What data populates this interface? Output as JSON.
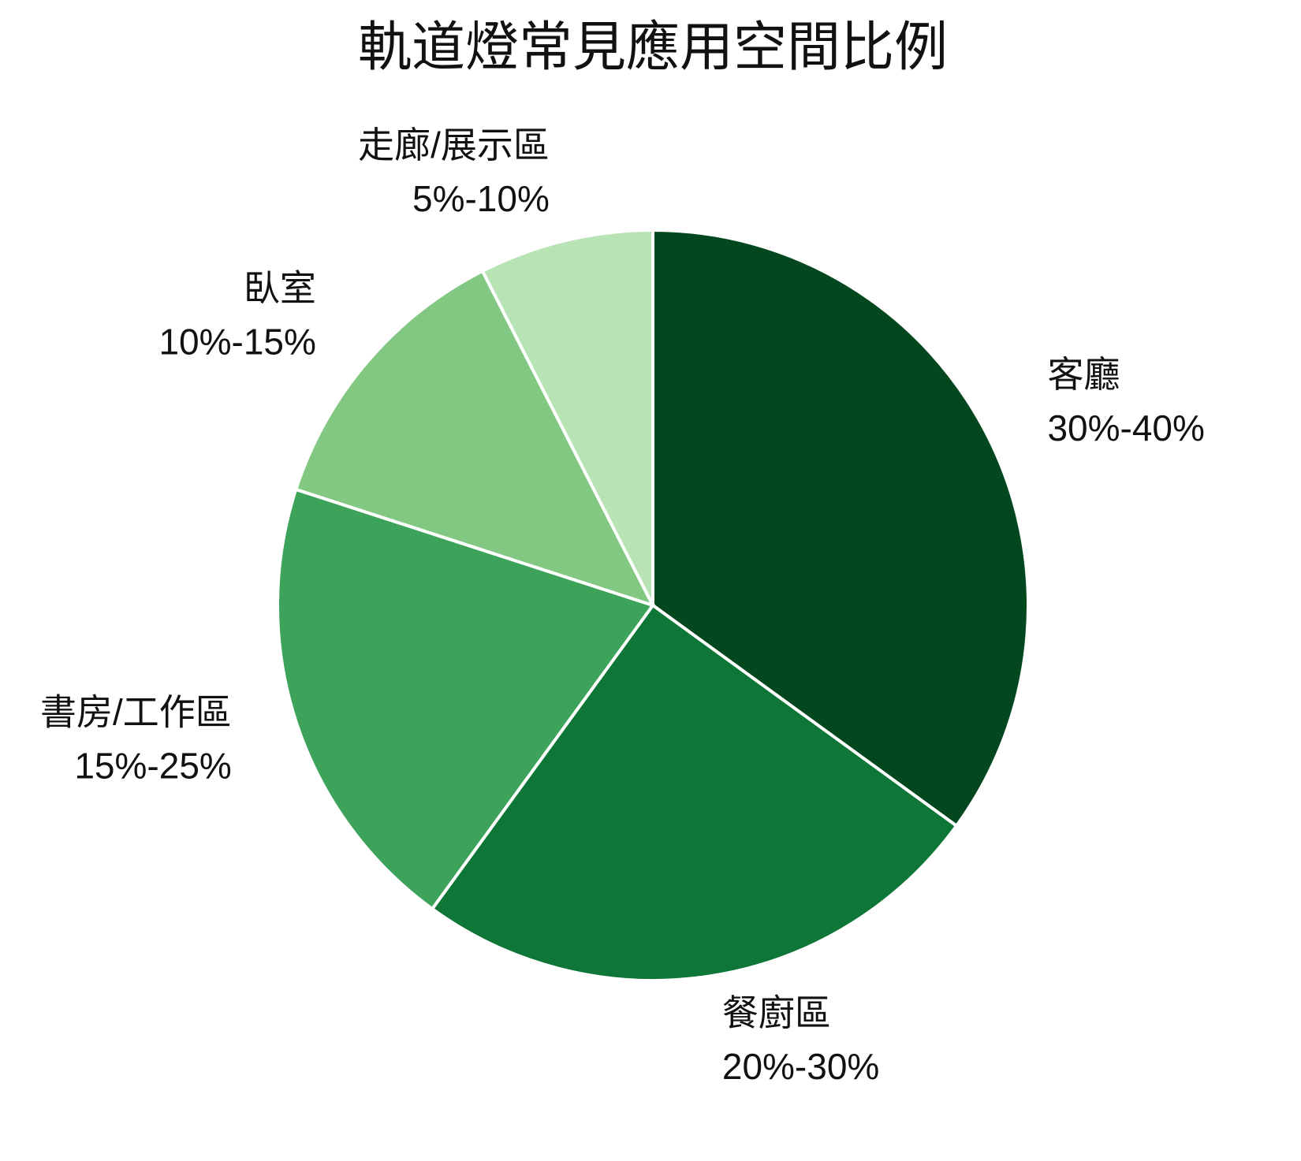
{
  "chart_data": {
    "type": "pie",
    "title": "軌道燈常見應用空間比例",
    "categories": [
      "客廳",
      "餐廚區",
      "書房/工作區",
      "臥室",
      "走廊/展示區"
    ],
    "values": [
      35,
      25,
      20,
      12.5,
      7.5
    ],
    "value_labels": [
      "30%-40%",
      "20%-30%",
      "15%-25%",
      "10%-15%",
      "5%-10%"
    ],
    "colors": [
      "#03471e",
      "#0e7637",
      "#3da35a",
      "#82c882",
      "#b8e3b4"
    ]
  }
}
